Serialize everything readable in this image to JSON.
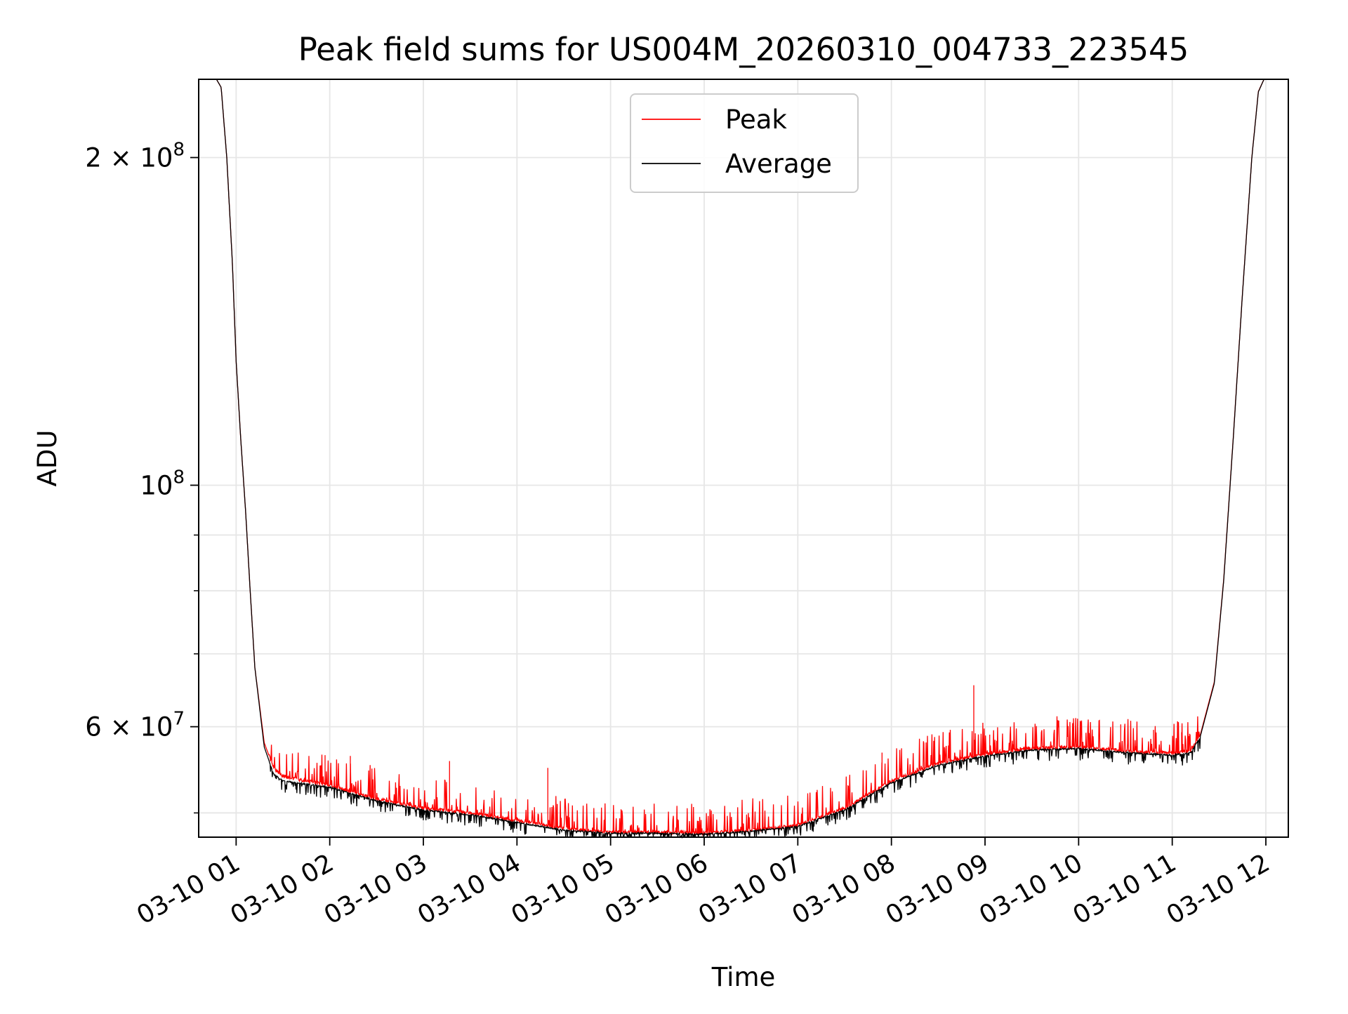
{
  "chart_data": {
    "type": "line",
    "title": "Peak field sums for US004M_20260310_004733_223545",
    "xlabel": "Time",
    "ylabel": "ADU",
    "yscale": "log",
    "grid": true,
    "legend_position": "top-center",
    "xlim": [
      0.6,
      12.24
    ],
    "ylim": [
      47500000,
      236000000
    ],
    "x_ticks": [
      1,
      2,
      3,
      4,
      5,
      6,
      7,
      8,
      9,
      10,
      11,
      12
    ],
    "x_tick_labels": [
      "03-10 01",
      "03-10 02",
      "03-10 03",
      "03-10 04",
      "03-10 05",
      "03-10 06",
      "03-10 07",
      "03-10 08",
      "03-10 09",
      "03-10 10",
      "03-10 11",
      "03-10 12"
    ],
    "y_major_ticks": [
      60000000,
      100000000,
      200000000
    ],
    "y_major_tick_labels": [
      {
        "mant": "6 × 10",
        "exp": "7"
      },
      {
        "mant": "",
        "exp": "8",
        "base": "10"
      },
      {
        "mant": "2 × 10",
        "exp": "8"
      }
    ],
    "y_minor_ticks": [
      50000000,
      70000000,
      80000000,
      90000000
    ],
    "series": [
      {
        "name": "Peak",
        "color": "#ff0000",
        "baseline": [
          [
            0.79,
            236000000
          ],
          [
            0.84,
            232000000
          ],
          [
            0.9,
            200000000
          ],
          [
            0.96,
            160000000
          ],
          [
            1.0,
            130000000
          ],
          [
            1.05,
            110000000
          ],
          [
            1.1,
            95000000
          ],
          [
            1.15,
            80000000
          ],
          [
            1.2,
            68000000
          ],
          [
            1.3,
            58000000
          ],
          [
            1.4,
            55000000
          ],
          [
            1.5,
            54000000
          ],
          [
            2.0,
            53000000
          ],
          [
            2.5,
            51500000
          ],
          [
            3.0,
            50500000
          ],
          [
            3.5,
            50000000
          ],
          [
            4.0,
            49200000
          ],
          [
            4.5,
            48400000
          ],
          [
            5.0,
            48000000
          ],
          [
            5.5,
            48000000
          ],
          [
            6.0,
            47900000
          ],
          [
            6.5,
            48200000
          ],
          [
            7.0,
            48700000
          ],
          [
            7.5,
            50500000
          ],
          [
            8.0,
            53500000
          ],
          [
            8.5,
            55500000
          ],
          [
            9.0,
            56600000
          ],
          [
            9.5,
            57300000
          ],
          [
            10.0,
            57500000
          ],
          [
            10.5,
            57000000
          ],
          [
            11.0,
            56700000
          ],
          [
            11.2,
            57000000
          ],
          [
            11.3,
            59000000
          ],
          [
            11.45,
            66000000
          ],
          [
            11.55,
            82000000
          ],
          [
            11.65,
            110000000
          ],
          [
            11.75,
            150000000
          ],
          [
            11.85,
            200000000
          ],
          [
            11.92,
            230000000
          ],
          [
            11.98,
            236000000
          ],
          [
            12.24,
            236000000
          ]
        ],
        "spikes": [
          [
            1.95,
            56500000
          ],
          [
            2.22,
            56400000
          ],
          [
            3.28,
            55800000
          ],
          [
            4.33,
            55000000
          ],
          [
            6.22,
            50700000
          ],
          [
            7.9,
            56800000
          ],
          [
            8.88,
            65500000
          ],
          [
            9.05,
            59000000
          ],
          [
            10.02,
            60500000
          ],
          [
            10.45,
            60300000
          ],
          [
            10.8,
            59600000
          ],
          [
            11.1,
            59300000
          ]
        ]
      },
      {
        "name": "Average",
        "color": "#000000",
        "baseline": [
          [
            0.79,
            236000000
          ],
          [
            0.84,
            232000000
          ],
          [
            0.9,
            200000000
          ],
          [
            0.96,
            160000000
          ],
          [
            1.0,
            130000000
          ],
          [
            1.05,
            110000000
          ],
          [
            1.1,
            95000000
          ],
          [
            1.15,
            80000000
          ],
          [
            1.2,
            68000000
          ],
          [
            1.3,
            57500000
          ],
          [
            1.4,
            54300000
          ],
          [
            1.5,
            53500000
          ],
          [
            2.0,
            52800000
          ],
          [
            2.5,
            51300000
          ],
          [
            3.0,
            50300000
          ],
          [
            3.5,
            49800000
          ],
          [
            4.0,
            49000000
          ],
          [
            4.5,
            48200000
          ],
          [
            5.0,
            47900000
          ],
          [
            5.5,
            47900000
          ],
          [
            6.0,
            47800000
          ],
          [
            6.5,
            48100000
          ],
          [
            7.0,
            48600000
          ],
          [
            7.5,
            50300000
          ],
          [
            8.0,
            53300000
          ],
          [
            8.5,
            55300000
          ],
          [
            9.0,
            56400000
          ],
          [
            9.5,
            57100000
          ],
          [
            10.0,
            57300000
          ],
          [
            10.5,
            56800000
          ],
          [
            11.0,
            56500000
          ],
          [
            11.2,
            56800000
          ],
          [
            11.3,
            58800000
          ],
          [
            11.45,
            65800000
          ],
          [
            11.55,
            81800000
          ],
          [
            11.65,
            109800000
          ],
          [
            11.75,
            149800000
          ],
          [
            11.85,
            199800000
          ],
          [
            11.92,
            229800000
          ],
          [
            11.98,
            236000000
          ],
          [
            12.24,
            236000000
          ]
        ]
      }
    ]
  }
}
